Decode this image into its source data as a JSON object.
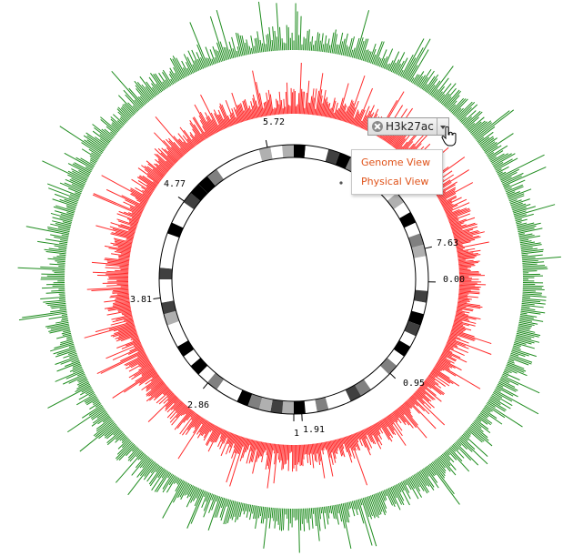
{
  "chart_data": {
    "type": "circular-genome",
    "tick_labels": [
      "0.00",
      "0.95",
      "1",
      "1.91",
      "2.86",
      "3.81",
      "4.77",
      "5.72",
      "7.63"
    ],
    "tracks": [
      {
        "name": "outer track",
        "color": "#1e8c1e"
      },
      {
        "name": "inner track",
        "color": "#ff2a2a"
      }
    ],
    "ideogram": {
      "band_colors": [
        "#000000",
        "#404040",
        "#808080",
        "#b0b0b0",
        "#ffffff"
      ]
    }
  },
  "track_chip": {
    "label": "H3k27ac"
  },
  "menu": {
    "items": [
      "Genome View",
      "Physical View"
    ]
  }
}
